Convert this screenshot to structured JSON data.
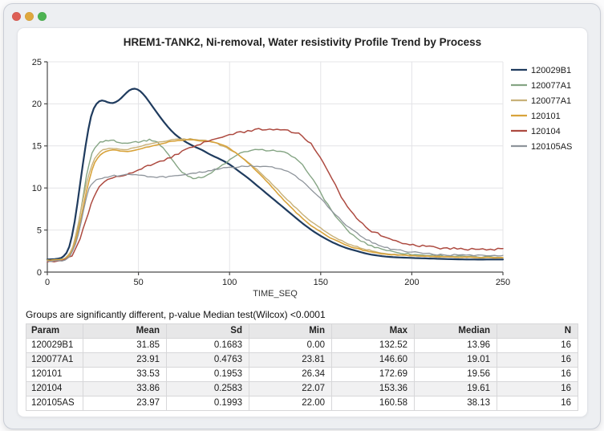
{
  "window": {
    "controls": {
      "close": "#dd5f56",
      "minimize": "#dfa83e",
      "maximize": "#4db352"
    }
  },
  "chart_data": {
    "type": "line",
    "title": "HREM1-TANK2, Ni-removal, Water resistivity Profile Trend by Process",
    "xlabel": "TIME_SEQ",
    "ylabel": "",
    "xlim": [
      0,
      250
    ],
    "ylim": [
      0,
      25
    ],
    "x_ticks": [
      0,
      50,
      100,
      150,
      200,
      250
    ],
    "y_ticks": [
      0,
      5,
      10,
      15,
      20,
      25
    ],
    "grid": true,
    "legend_position": "right",
    "axis_color": "#4a4a4a",
    "grid_color": "#e4e4e7",
    "series": [
      {
        "name": "120029B1",
        "color": "#1f3b5e",
        "width": 2.2,
        "points": [
          [
            0,
            1.5
          ],
          [
            6,
            1.6
          ],
          [
            9,
            1.9
          ],
          [
            12,
            3
          ],
          [
            15,
            6
          ],
          [
            18,
            10.5
          ],
          [
            21,
            15
          ],
          [
            24,
            18.5
          ],
          [
            27,
            20
          ],
          [
            30,
            20.4
          ],
          [
            33,
            20.2
          ],
          [
            36,
            20.1
          ],
          [
            39,
            20.4
          ],
          [
            42,
            21
          ],
          [
            45,
            21.6
          ],
          [
            48,
            21.8
          ],
          [
            51,
            21.5
          ],
          [
            54,
            20.8
          ],
          [
            58,
            19.6
          ],
          [
            62,
            18.4
          ],
          [
            66,
            17.3
          ],
          [
            70,
            16.4
          ],
          [
            75,
            15.6
          ],
          [
            80,
            15
          ],
          [
            85,
            14.5
          ],
          [
            90,
            13.9
          ],
          [
            95,
            13.4
          ],
          [
            100,
            12.8
          ],
          [
            105,
            12
          ],
          [
            110,
            11.2
          ],
          [
            115,
            10.3
          ],
          [
            120,
            9.4
          ],
          [
            125,
            8.5
          ],
          [
            130,
            7.6
          ],
          [
            135,
            6.7
          ],
          [
            140,
            5.8
          ],
          [
            145,
            5
          ],
          [
            150,
            4.3
          ],
          [
            155,
            3.7
          ],
          [
            160,
            3.2
          ],
          [
            165,
            2.8
          ],
          [
            170,
            2.5
          ],
          [
            175,
            2.2
          ],
          [
            180,
            2
          ],
          [
            188,
            1.8
          ],
          [
            198,
            1.7
          ],
          [
            212,
            1.6
          ],
          [
            230,
            1.5
          ],
          [
            250,
            1.5
          ]
        ]
      },
      {
        "name": "120077A1",
        "color": "#85a584",
        "width": 1.4,
        "points": [
          [
            0,
            1.4
          ],
          [
            8,
            1.5
          ],
          [
            11,
            1.8
          ],
          [
            14,
            2.8
          ],
          [
            17,
            5.5
          ],
          [
            20,
            9.5
          ],
          [
            23,
            13
          ],
          [
            26,
            14.8
          ],
          [
            29,
            15.4
          ],
          [
            32,
            15.6
          ],
          [
            35,
            15.7
          ],
          [
            38,
            15.5
          ],
          [
            41,
            15.3
          ],
          [
            44,
            15.4
          ],
          [
            47,
            15.5
          ],
          [
            50,
            15.5
          ],
          [
            53,
            15.6
          ],
          [
            56,
            15.7
          ],
          [
            59,
            15.6
          ],
          [
            62,
            15.1
          ],
          [
            65,
            14.4
          ],
          [
            68,
            13.5
          ],
          [
            71,
            12.6
          ],
          [
            74,
            11.9
          ],
          [
            77,
            11.5
          ],
          [
            80,
            11.2
          ],
          [
            83,
            11.2
          ],
          [
            86,
            11.4
          ],
          [
            90,
            11.8
          ],
          [
            94,
            12.4
          ],
          [
            98,
            13
          ],
          [
            102,
            13.6
          ],
          [
            106,
            14.1
          ],
          [
            110,
            14.4
          ],
          [
            114,
            14.5
          ],
          [
            118,
            14.5
          ],
          [
            122,
            14.5
          ],
          [
            126,
            14.4
          ],
          [
            130,
            14.2
          ],
          [
            134,
            13.8
          ],
          [
            138,
            13.1
          ],
          [
            142,
            12.2
          ],
          [
            146,
            10.9
          ],
          [
            150,
            9.4
          ],
          [
            154,
            8
          ],
          [
            158,
            6.7
          ],
          [
            162,
            5.6
          ],
          [
            166,
            4.7
          ],
          [
            170,
            4
          ],
          [
            174,
            3.5
          ],
          [
            178,
            3.1
          ],
          [
            183,
            2.8
          ],
          [
            188,
            2.5
          ],
          [
            194,
            2.3
          ],
          [
            200,
            2.1
          ],
          [
            210,
            2
          ],
          [
            222,
            1.9
          ],
          [
            236,
            1.8
          ],
          [
            250,
            1.8
          ]
        ]
      },
      {
        "name": "120077A1",
        "color": "#c8b179",
        "width": 1.4,
        "points": [
          [
            0,
            1.4
          ],
          [
            8,
            1.5
          ],
          [
            11,
            1.9
          ],
          [
            14,
            3
          ],
          [
            17,
            5.8
          ],
          [
            20,
            9
          ],
          [
            23,
            11.8
          ],
          [
            26,
            13.5
          ],
          [
            29,
            14.3
          ],
          [
            32,
            14.6
          ],
          [
            36,
            14.7
          ],
          [
            40,
            14.6
          ],
          [
            44,
            14.6
          ],
          [
            48,
            14.8
          ],
          [
            52,
            15
          ],
          [
            56,
            15.2
          ],
          [
            60,
            15.4
          ],
          [
            65,
            15.6
          ],
          [
            70,
            15.8
          ],
          [
            75,
            15.8
          ],
          [
            80,
            15.8
          ],
          [
            85,
            15.7
          ],
          [
            90,
            15.5
          ],
          [
            95,
            15.1
          ],
          [
            100,
            14.6
          ],
          [
            105,
            13.9
          ],
          [
            110,
            13.1
          ],
          [
            115,
            12.2
          ],
          [
            120,
            11.2
          ],
          [
            125,
            10.1
          ],
          [
            130,
            9
          ],
          [
            135,
            7.9
          ],
          [
            140,
            6.9
          ],
          [
            145,
            6
          ],
          [
            150,
            5.2
          ],
          [
            155,
            4.5
          ],
          [
            160,
            3.9
          ],
          [
            165,
            3.4
          ],
          [
            170,
            3
          ],
          [
            175,
            2.7
          ],
          [
            180,
            2.4
          ],
          [
            187,
            2.2
          ],
          [
            195,
            2
          ],
          [
            205,
            1.9
          ],
          [
            220,
            1.8
          ],
          [
            250,
            1.7
          ]
        ]
      },
      {
        "name": "120101",
        "color": "#d8a33b",
        "width": 1.6,
        "points": [
          [
            0,
            1.4
          ],
          [
            8,
            1.5
          ],
          [
            11,
            1.8
          ],
          [
            14,
            2.7
          ],
          [
            17,
            5
          ],
          [
            20,
            8
          ],
          [
            23,
            11
          ],
          [
            26,
            13
          ],
          [
            29,
            13.9
          ],
          [
            32,
            14.3
          ],
          [
            36,
            14.5
          ],
          [
            40,
            14.4
          ],
          [
            44,
            14.3
          ],
          [
            48,
            14.5
          ],
          [
            52,
            14.7
          ],
          [
            56,
            14.9
          ],
          [
            60,
            15.1
          ],
          [
            65,
            15.4
          ],
          [
            70,
            15.6
          ],
          [
            75,
            15.7
          ],
          [
            80,
            15.7
          ],
          [
            85,
            15.6
          ],
          [
            90,
            15.5
          ],
          [
            95,
            15.2
          ],
          [
            100,
            14.7
          ],
          [
            105,
            13.9
          ],
          [
            110,
            13
          ],
          [
            115,
            12
          ],
          [
            120,
            10.9
          ],
          [
            125,
            9.7
          ],
          [
            130,
            8.5
          ],
          [
            135,
            7.4
          ],
          [
            140,
            6.4
          ],
          [
            145,
            5.5
          ],
          [
            150,
            4.8
          ],
          [
            155,
            4.1
          ],
          [
            160,
            3.6
          ],
          [
            165,
            3.1
          ],
          [
            170,
            2.8
          ],
          [
            175,
            2.5
          ],
          [
            180,
            2.3
          ],
          [
            187,
            2.1
          ],
          [
            196,
            2
          ],
          [
            207,
            1.9
          ],
          [
            222,
            1.8
          ],
          [
            250,
            1.7
          ]
        ]
      },
      {
        "name": "120104",
        "color": "#ad4a40",
        "width": 1.5,
        "points": [
          [
            0,
            1.3
          ],
          [
            8,
            1.4
          ],
          [
            12,
            1.7
          ],
          [
            15,
            2.5
          ],
          [
            18,
            4
          ],
          [
            21,
            6
          ],
          [
            24,
            8
          ],
          [
            27,
            9.5
          ],
          [
            30,
            10.5
          ],
          [
            33,
            11
          ],
          [
            36,
            11.3
          ],
          [
            40,
            11.5
          ],
          [
            45,
            11.7
          ],
          [
            50,
            12.1
          ],
          [
            55,
            12.6
          ],
          [
            60,
            13
          ],
          [
            66,
            13.5
          ],
          [
            72,
            14.1
          ],
          [
            78,
            14.7
          ],
          [
            84,
            15.2
          ],
          [
            90,
            15.7
          ],
          [
            96,
            16.1
          ],
          [
            102,
            16.4
          ],
          [
            108,
            16.7
          ],
          [
            114,
            16.9
          ],
          [
            120,
            17
          ],
          [
            126,
            17
          ],
          [
            132,
            16.8
          ],
          [
            138,
            16.4
          ],
          [
            143,
            15.6
          ],
          [
            148,
            14.2
          ],
          [
            153,
            12.3
          ],
          [
            158,
            10.3
          ],
          [
            163,
            8.4
          ],
          [
            168,
            6.9
          ],
          [
            173,
            5.8
          ],
          [
            178,
            4.9
          ],
          [
            183,
            4.4
          ],
          [
            188,
            3.9
          ],
          [
            193,
            3.6
          ],
          [
            199,
            3.3
          ],
          [
            206,
            3.1
          ],
          [
            214,
            2.9
          ],
          [
            225,
            2.8
          ],
          [
            237,
            2.7
          ],
          [
            250,
            2.7
          ]
        ]
      },
      {
        "name": "120105AS",
        "color": "#8e949b",
        "width": 1.3,
        "points": [
          [
            0,
            1.3
          ],
          [
            8,
            1.4
          ],
          [
            11,
            1.7
          ],
          [
            14,
            2.5
          ],
          [
            17,
            4.5
          ],
          [
            20,
            7.5
          ],
          [
            22,
            9.3
          ],
          [
            24,
            10.4
          ],
          [
            27,
            11
          ],
          [
            30,
            11.2
          ],
          [
            35,
            11.4
          ],
          [
            40,
            11.5
          ],
          [
            45,
            11.6
          ],
          [
            50,
            11.5
          ],
          [
            55,
            11.4
          ],
          [
            60,
            11.3
          ],
          [
            65,
            11.3
          ],
          [
            70,
            11.4
          ],
          [
            75,
            11.5
          ],
          [
            80,
            11.7
          ],
          [
            85,
            11.9
          ],
          [
            90,
            12.1
          ],
          [
            95,
            12.3
          ],
          [
            100,
            12.4
          ],
          [
            105,
            12.5
          ],
          [
            110,
            12.6
          ],
          [
            115,
            12.6
          ],
          [
            120,
            12.5
          ],
          [
            125,
            12.4
          ],
          [
            130,
            12.1
          ],
          [
            134,
            11.7
          ],
          [
            138,
            11.1
          ],
          [
            142,
            10.4
          ],
          [
            146,
            9.6
          ],
          [
            150,
            8.7
          ],
          [
            154,
            7.8
          ],
          [
            158,
            6.9
          ],
          [
            162,
            6
          ],
          [
            166,
            5.2
          ],
          [
            170,
            4.6
          ],
          [
            175,
            3.9
          ],
          [
            180,
            3.4
          ],
          [
            185,
            3
          ],
          [
            190,
            2.7
          ],
          [
            196,
            2.5
          ],
          [
            204,
            2.3
          ],
          [
            214,
            2.1
          ],
          [
            228,
            2
          ],
          [
            250,
            1.9
          ]
        ]
      }
    ]
  },
  "note": "Groups are significantly different, p-value Median test(Wilcox) <0.0001",
  "table": {
    "columns": [
      "Param",
      "Mean",
      "Sd",
      "Min",
      "Max",
      "Median",
      "N"
    ],
    "rows": [
      [
        "120029B1",
        "31.85",
        "0.1683",
        "0.00",
        "132.52",
        "13.96",
        "16"
      ],
      [
        "120077A1",
        "23.91",
        "0.4763",
        "23.81",
        "146.60",
        "19.01",
        "16"
      ],
      [
        "120101",
        "33.53",
        "0.1953",
        "26.34",
        "172.69",
        "19.56",
        "16"
      ],
      [
        "120104",
        "33.86",
        "0.2583",
        "22.07",
        "153.36",
        "19.61",
        "16"
      ],
      [
        "120105AS",
        "23.97",
        "0.1993",
        "22.00",
        "160.58",
        "38.13",
        "16"
      ]
    ]
  }
}
